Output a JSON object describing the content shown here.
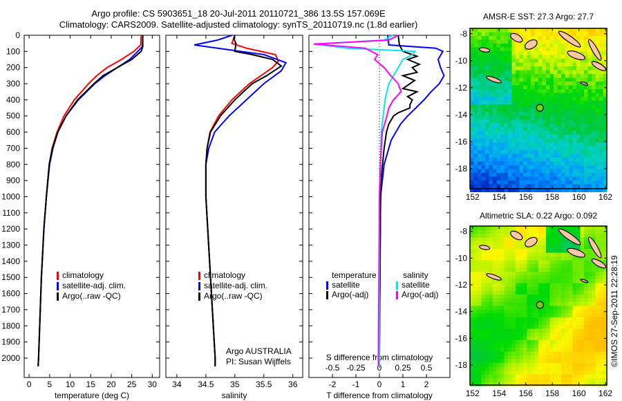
{
  "header": {
    "title_line1": "Argo profile: CS 5903651_18 20-Jul-2011 20110721_386 13.5S 157.069E",
    "title_line2": "Climatology: CARS2009. Satellite-adjusted climatology: synTS_20110719.nc (1.8d earlier)"
  },
  "credit": "©IMOS 27-Sep-2011 22:28:19",
  "colors": {
    "climatology": "#ff0000",
    "satellite": "#0000ff",
    "argo": "#000000",
    "s_satellite": "#00e8f0",
    "s_argo": "#ff00ff",
    "island": "#ffc8a0"
  },
  "chart_data": [
    {
      "type": "line",
      "id": "temperature",
      "xlabel": "temperature (deg C)",
      "ylabel": "",
      "xlim": [
        -1.2,
        31.8
      ],
      "ylim": [
        0,
        2120
      ],
      "xticks": [
        0,
        5,
        10,
        15,
        20,
        25,
        30
      ],
      "xtick_labels": [
        "0",
        "5",
        "10",
        "15",
        "20",
        "25",
        "30"
      ],
      "yticks": [
        0,
        100,
        200,
        300,
        400,
        500,
        600,
        700,
        800,
        900,
        1000,
        1100,
        1200,
        1300,
        1400,
        1500,
        1600,
        1700,
        1800,
        1900,
        2000
      ],
      "ytick_labels": [
        "0",
        "100",
        "200",
        "300",
        "400",
        "500",
        "600",
        "700",
        "800",
        "900",
        "1000",
        "1100",
        "1200",
        "1300",
        "1400",
        "1500",
        "1600",
        "1700",
        "1800",
        "1900",
        "2000"
      ],
      "legend": [
        "climatology",
        "satellite-adj. clim.",
        "Argo(..raw -QC)"
      ],
      "series": [
        {
          "name": "climatology",
          "color": "#ff0000",
          "depth": [
            0,
            60,
            100,
            150,
            200,
            250,
            300,
            400,
            500,
            600,
            700,
            800,
            1000,
            1200,
            1500,
            2000,
            2050
          ],
          "values": [
            27.3,
            27.2,
            25.5,
            22.5,
            19,
            16.5,
            14.5,
            11,
            8.5,
            6.8,
            5.6,
            4.9,
            4.2,
            3.6,
            3.0,
            2.3,
            2.2
          ]
        },
        {
          "name": "satellite-adj. clim.",
          "color": "#0000ff",
          "depth": [
            0,
            70,
            100,
            150,
            200,
            250,
            300,
            400,
            500,
            600,
            700,
            800,
            1000,
            1200,
            1500,
            2000,
            2050
          ],
          "values": [
            27.7,
            27.6,
            26.5,
            24.5,
            21.5,
            18.5,
            16,
            12,
            9,
            7,
            5.8,
            5.0,
            4.2,
            3.6,
            3.0,
            2.3,
            2.2
          ]
        },
        {
          "name": "Argo(..raw -QC)",
          "color": "#000000",
          "depth": [
            0,
            70,
            100,
            150,
            200,
            250,
            300,
            400,
            500,
            600,
            700,
            800,
            1000,
            1200,
            1500,
            2000,
            2050
          ],
          "values": [
            27.7,
            27.7,
            27.3,
            25,
            21.5,
            18,
            15.8,
            11.8,
            9,
            7,
            5.7,
            4.9,
            4.2,
            3.6,
            3.0,
            2.3,
            2.2
          ]
        }
      ]
    },
    {
      "type": "line",
      "id": "salinity",
      "xlabel": "salinity",
      "xlim": [
        33.81,
        36.17
      ],
      "ylim": [
        0,
        2120
      ],
      "xticks": [
        34,
        34.5,
        35,
        35.5,
        36
      ],
      "xtick_labels": [
        "34",
        "34.5",
        "35",
        "35.5",
        "36"
      ],
      "legend": [
        "climatology",
        "satellite-adj. clim.",
        "Argo(..raw -QC)"
      ],
      "annotation": [
        "Argo AUSTRALIA",
        "PI: Susan Wijffels"
      ],
      "series": [
        {
          "name": "climatology",
          "color": "#ff0000",
          "depth": [
            0,
            50,
            80,
            120,
            160,
            200,
            250,
            300,
            400,
            500,
            600,
            700,
            800,
            1000,
            1500,
            2000,
            2050
          ],
          "values": [
            35.0,
            34.95,
            35.2,
            35.7,
            35.75,
            35.65,
            35.45,
            35.25,
            34.95,
            34.72,
            34.57,
            34.52,
            34.5,
            34.5,
            34.58,
            34.66,
            34.66
          ]
        },
        {
          "name": "satellite-adj. clim.",
          "color": "#0000ff",
          "depth": [
            0,
            30,
            60,
            90,
            120,
            170,
            220,
            300,
            400,
            500,
            600,
            700,
            800,
            1000,
            1500,
            2000,
            2050
          ],
          "values": [
            34.95,
            34.7,
            34.3,
            34.9,
            35.5,
            35.88,
            35.8,
            35.5,
            35.2,
            34.9,
            34.65,
            34.55,
            34.5,
            34.5,
            34.58,
            34.66,
            34.66
          ]
        },
        {
          "name": "Argo(..raw -QC)",
          "color": "#000000",
          "depth": [
            0,
            20,
            50,
            100,
            120,
            150,
            190,
            250,
            300,
            400,
            500,
            600,
            700,
            800,
            1000,
            1500,
            2000,
            2050
          ],
          "values": [
            35.0,
            34.98,
            35.02,
            35.0,
            35.3,
            35.65,
            35.8,
            35.55,
            35.3,
            35.0,
            34.75,
            34.58,
            34.52,
            34.5,
            34.5,
            34.58,
            34.66,
            34.66
          ]
        }
      ]
    },
    {
      "type": "line",
      "id": "difference",
      "xlabel": "T difference from climatology",
      "x2label": "S difference from climatology",
      "xlim": [
        -3,
        3
      ],
      "ylim": [
        0,
        2120
      ],
      "xticks": [
        -2,
        -1,
        0,
        1,
        2
      ],
      "xtick_labels": [
        "-2",
        "-1",
        "0",
        "1",
        "2"
      ],
      "x2ticks": [
        -0.5,
        -0.25,
        0,
        0.25,
        0.5
      ],
      "x2tick_labels": [
        "-0.5",
        "-0.25",
        "0",
        "0.25",
        "0.5"
      ],
      "legend_headers": [
        "temperature",
        "salinity"
      ],
      "legend": [
        "satellite",
        "Argo(-adj)",
        "satellite",
        "Argo(-adj)"
      ],
      "series": [
        {
          "name": "T satellite",
          "color": "#0000ff",
          "axis": "T",
          "depth": [
            0,
            60,
            80,
            100,
            150,
            200,
            250,
            300,
            350,
            400,
            450,
            500,
            550,
            650,
            800,
            1000,
            1500,
            2000,
            2050
          ],
          "values": [
            0.35,
            0.4,
            2.4,
            2.7,
            2.5,
            2.6,
            2.75,
            2.55,
            2.2,
            1.9,
            1.55,
            1.2,
            0.9,
            0.5,
            0.2,
            0.05,
            0.02,
            0.0,
            0.0
          ]
        },
        {
          "name": "T Argo",
          "color": "#000000",
          "axis": "T",
          "depth": [
            0,
            60,
            100,
            130,
            150,
            180,
            200,
            230,
            250,
            280,
            300,
            330,
            350,
            380,
            400,
            430,
            450,
            480,
            500,
            550,
            600,
            700,
            850,
            1000,
            2000,
            2050
          ],
          "values": [
            0.8,
            0.85,
            1.0,
            1.6,
            1.2,
            1.7,
            1.4,
            1.6,
            1.0,
            1.5,
            1.3,
            1.0,
            1.6,
            1.2,
            1.4,
            1.3,
            1.3,
            0.8,
            0.6,
            0.4,
            0.3,
            0.2,
            0.1,
            0.05,
            0.0,
            0.0
          ]
        },
        {
          "name": "S satellite",
          "color": "#00e8f0",
          "axis": "S",
          "depth": [
            0,
            30,
            55,
            80,
            100,
            120,
            150,
            200,
            250,
            300,
            400,
            500,
            600,
            800,
            1000,
            2000,
            2050
          ],
          "values": [
            0.14,
            0.05,
            -0.68,
            -0.35,
            0.38,
            0.35,
            0.25,
            0.2,
            0.15,
            0.1,
            0.06,
            0.04,
            0.02,
            0.01,
            0.0,
            0.0,
            0.0
          ]
        },
        {
          "name": "S Argo",
          "color": "#ff00ff",
          "axis": "S",
          "depth": [
            0,
            30,
            55,
            80,
            120,
            150,
            200,
            250,
            300,
            350,
            400,
            450,
            500,
            600,
            800,
            1000,
            2000,
            2050
          ],
          "values": [
            0.2,
            0.1,
            -0.7,
            -0.15,
            -0.02,
            -0.05,
            0.05,
            0.12,
            0.2,
            0.23,
            0.15,
            0.1,
            0.08,
            0.03,
            0.01,
            0.0,
            -0.01,
            -0.01
          ]
        }
      ]
    }
  ],
  "maps": [
    {
      "id": "sst",
      "title": "AMSR-E SST: 27.3 Argo: 27.7",
      "lonlim": [
        151.8,
        162.1
      ],
      "latlim": [
        -19.5,
        -7.6
      ],
      "xticks": [
        152,
        154,
        156,
        158,
        160,
        162
      ],
      "xtick_labels": [
        "152",
        "154",
        "156",
        "158",
        "160",
        "162"
      ],
      "yticks": [
        -8,
        -10,
        -12,
        -14,
        -16,
        -18
      ],
      "ytick_labels": [
        "-8",
        "-10",
        "-12",
        "-14",
        "-16",
        "-18"
      ],
      "argo": {
        "lon": 157.069,
        "lat": -13.5
      }
    },
    {
      "id": "sla",
      "title": "Altimetric SLA: 0.22 Argo: 0.092",
      "lonlim": [
        151.8,
        162.1
      ],
      "latlim": [
        -19.5,
        -7.6
      ],
      "xticks": [
        152,
        154,
        156,
        158,
        160,
        162
      ],
      "xtick_labels": [
        "152",
        "154",
        "156",
        "158",
        "160",
        "162"
      ],
      "yticks": [
        -8,
        -10,
        -12,
        -14,
        -16,
        -18
      ],
      "ytick_labels": [
        "-8",
        "-10",
        "-12",
        "-14",
        "-16",
        "-18"
      ],
      "argo": {
        "lon": 157.069,
        "lat": -13.5
      }
    }
  ]
}
